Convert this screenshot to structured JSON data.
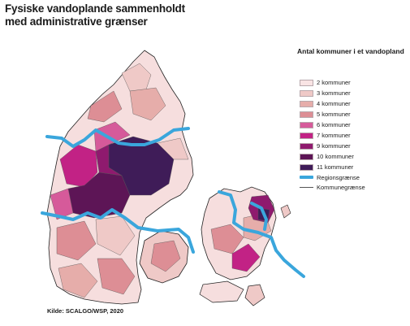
{
  "title": {
    "line1": "Fysiske vandoplande sammenholdt",
    "line2": "med administrative grænser"
  },
  "legend": {
    "title": "Antal kommuner i et vandopland",
    "classes": [
      {
        "label": "2 kommuner",
        "color": "#f9e4e4"
      },
      {
        "label": "3 kommuner",
        "color": "#efc9c7"
      },
      {
        "label": "4 kommuner",
        "color": "#e6adaa"
      },
      {
        "label": "5 kommuner",
        "color": "#dd8e95"
      },
      {
        "label": "6 kommuner",
        "color": "#d65a9a"
      },
      {
        "label": "7 kommuner",
        "color": "#c22285"
      },
      {
        "label": "9 kommuner",
        "color": "#8f1a6e"
      },
      {
        "label": "10 kommuner",
        "color": "#5d1556"
      },
      {
        "label": "11 kommuner",
        "color": "#3f1c58"
      }
    ],
    "lines": [
      {
        "label": "Regionsgrænse",
        "color": "#3aa6dc"
      },
      {
        "label": "Kommunegrænse",
        "color": "#555555"
      }
    ]
  },
  "source": "Kilde: SCALGO/WSP, 2020"
}
